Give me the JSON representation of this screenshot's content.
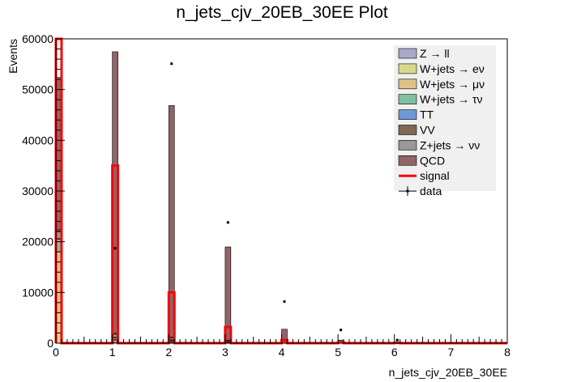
{
  "chart_data": {
    "type": "bar",
    "title": "n_jets_cjv_20EB_30EE Plot",
    "xlabel": "n_jets_cjv_20EB_30EE",
    "ylabel": "Events",
    "xlim": [
      0,
      8
    ],
    "ylim": [
      0,
      60000
    ],
    "bin_width": 0.1,
    "x_ticks": [
      "0",
      "1",
      "2",
      "3",
      "4",
      "5",
      "6",
      "7",
      "8"
    ],
    "y_ticks": [
      "0",
      "10000",
      "20000",
      "30000",
      "40000",
      "50000",
      "60000"
    ],
    "x_tick_values": [
      0,
      1,
      2,
      3,
      4,
      5,
      6,
      7,
      8
    ],
    "y_tick_values": [
      0,
      10000,
      20000,
      30000,
      40000,
      50000,
      60000
    ],
    "legend_position": "top-right",
    "grid": false,
    "stack_order": [
      "W+jets → eν",
      "W+jets → μν",
      "W+jets → τν",
      "Z → ll",
      "TT",
      "Z+jets → νν",
      "VV",
      "QCD"
    ],
    "series": [
      {
        "name": "Z → ll",
        "color": "#a8a8c8",
        "x": [
          0,
          1,
          2,
          3
        ],
        "values": [
          500,
          300,
          150,
          60
        ]
      },
      {
        "name": "W+jets → eν",
        "color": "#d8d890",
        "x": [
          0,
          1,
          2,
          3
        ],
        "values": [
          6000,
          200,
          100,
          50
        ]
      },
      {
        "name": "W+jets → μν",
        "color": "#dfc088",
        "x": [
          0,
          1,
          2,
          3
        ],
        "values": [
          12000,
          400,
          200,
          80
        ]
      },
      {
        "name": "W+jets → τν",
        "color": "#80c0a0",
        "x": [
          0,
          1,
          2,
          3
        ],
        "values": [
          2000,
          150,
          100,
          40
        ]
      },
      {
        "name": "TT",
        "color": "#7098d8",
        "x": [
          0,
          1,
          2,
          3,
          4
        ],
        "values": [
          100,
          100,
          200,
          150,
          50
        ]
      },
      {
        "name": "VV",
        "color": "#806858",
        "x": [
          0,
          1,
          2,
          3
        ],
        "values": [
          300,
          200,
          100,
          50
        ]
      },
      {
        "name": "Z+jets → νν",
        "color": "#989898",
        "x": [
          0,
          1,
          2,
          3
        ],
        "values": [
          1500,
          600,
          300,
          150
        ]
      },
      {
        "name": "QCD",
        "color": "#906468",
        "x": [
          0,
          1,
          2,
          3,
          4,
          5,
          6
        ],
        "values": [
          30000,
          55500,
          45700,
          18400,
          2700,
          600,
          150
        ]
      },
      {
        "name": "signal",
        "color": "#ff0000",
        "x": [
          0,
          1,
          2,
          3,
          4,
          5,
          6
        ],
        "values": [
          60000,
          35000,
          10000,
          3200,
          600,
          150,
          50
        ]
      },
      {
        "name": "data",
        "color": "#000000",
        "x": [
          1,
          2,
          3,
          4,
          5,
          6
        ],
        "values": [
          18700,
          55100,
          23800,
          8200,
          2600,
          600
        ]
      }
    ]
  }
}
